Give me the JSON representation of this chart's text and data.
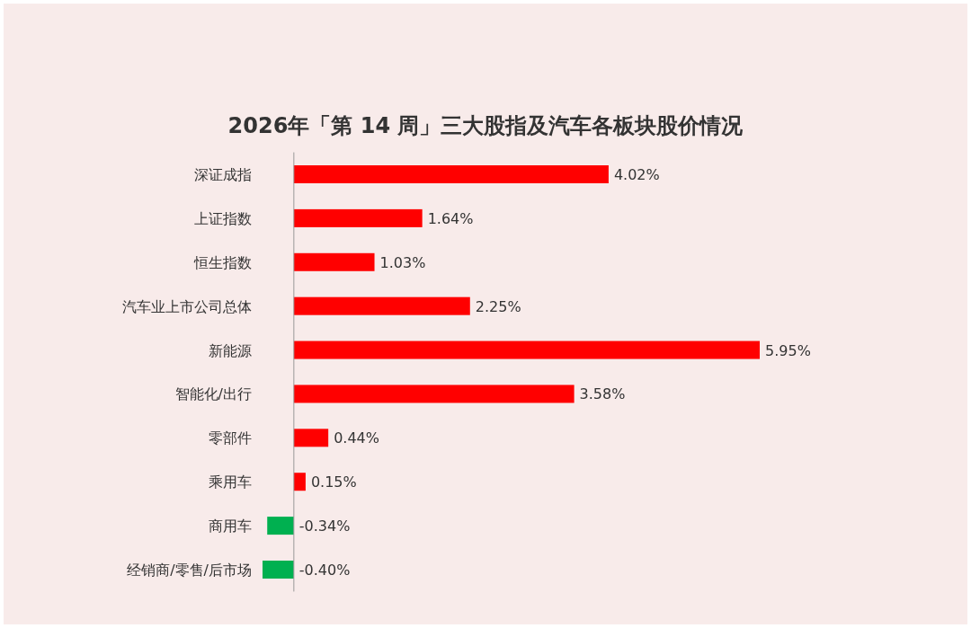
{
  "chart_data": {
    "type": "bar",
    "orientation": "horizontal",
    "title": "2026年「第 14 周」三大股指及汽车各板块股价情况",
    "categories": [
      "深证成指",
      "上证指数",
      "恒生指数",
      "汽车业上市公司总体",
      "新能源",
      "智能化/出行",
      "零部件",
      "乘用车",
      "商用车",
      "经销商/零售/后市场"
    ],
    "values": [
      4.02,
      1.64,
      1.03,
      2.25,
      5.95,
      3.58,
      0.44,
      0.15,
      -0.34,
      -0.4
    ],
    "colors": [
      "#ff0000",
      "#ff0000",
      "#ff0000",
      "#ff0000",
      "#ff0000",
      "#ff0000",
      "#ff0000",
      "#ff0000",
      "#00b050",
      "#00b050"
    ],
    "value_labels": [
      "4.02%",
      "1.64%",
      "1.03%",
      "2.25%",
      "5.95%",
      "3.58%",
      "0.44%",
      "0.15%",
      "-0.34%",
      "-0.40%"
    ]
  }
}
